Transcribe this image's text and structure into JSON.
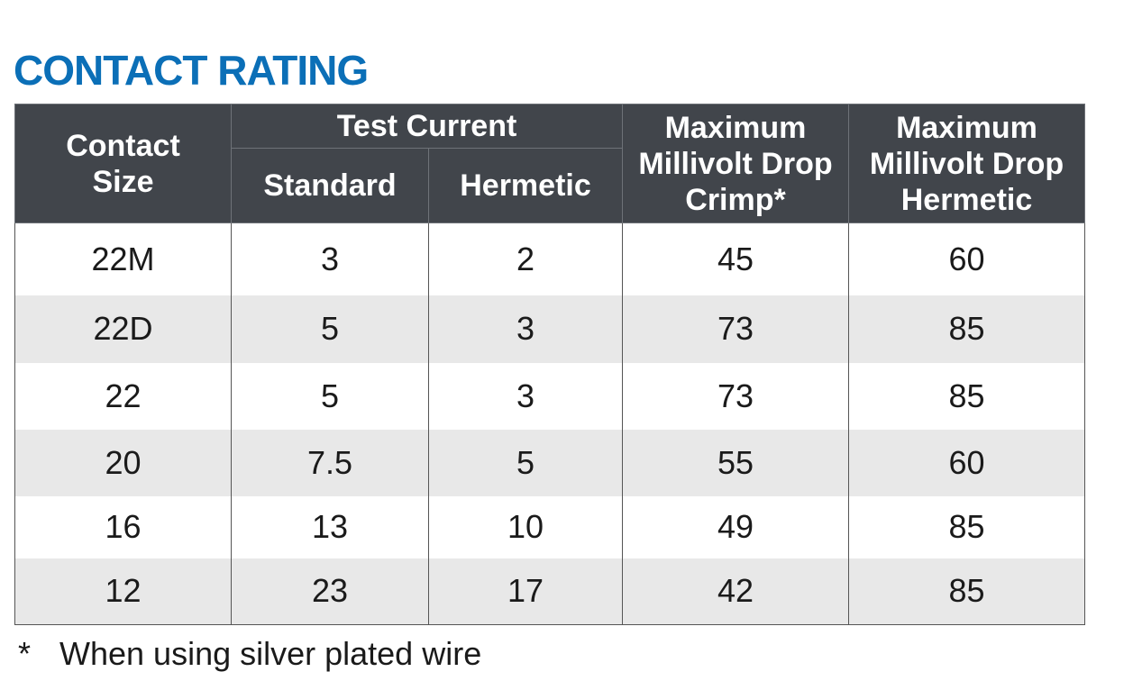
{
  "title": "CONTACT RATING",
  "table": {
    "headers": {
      "contact_size": "Contact Size",
      "test_current": "Test Current",
      "standard": "Standard",
      "hermetic": "Hermetic",
      "max_drop_crimp": "Maximum Millivolt Drop Crimp*",
      "max_drop_hermetic": "Maximum Millivolt Drop Hermetic"
    },
    "rows": [
      [
        "22M",
        "3",
        "2",
        "45",
        "60"
      ],
      [
        "22D",
        "5",
        "3",
        "73",
        "85"
      ],
      [
        "22",
        "5",
        "3",
        "73",
        "85"
      ],
      [
        "20",
        "7.5",
        "5",
        "55",
        "60"
      ],
      [
        "16",
        "13",
        "10",
        "49",
        "85"
      ],
      [
        "12",
        "23",
        "17",
        "42",
        "85"
      ]
    ]
  },
  "footnote": {
    "marker": "*",
    "text": "When using silver plated wire"
  },
  "colors": {
    "title": "#0b6fb7",
    "header_bg": "#41454b",
    "header_text": "#ffffff",
    "stripe": "#e8e8e8"
  }
}
